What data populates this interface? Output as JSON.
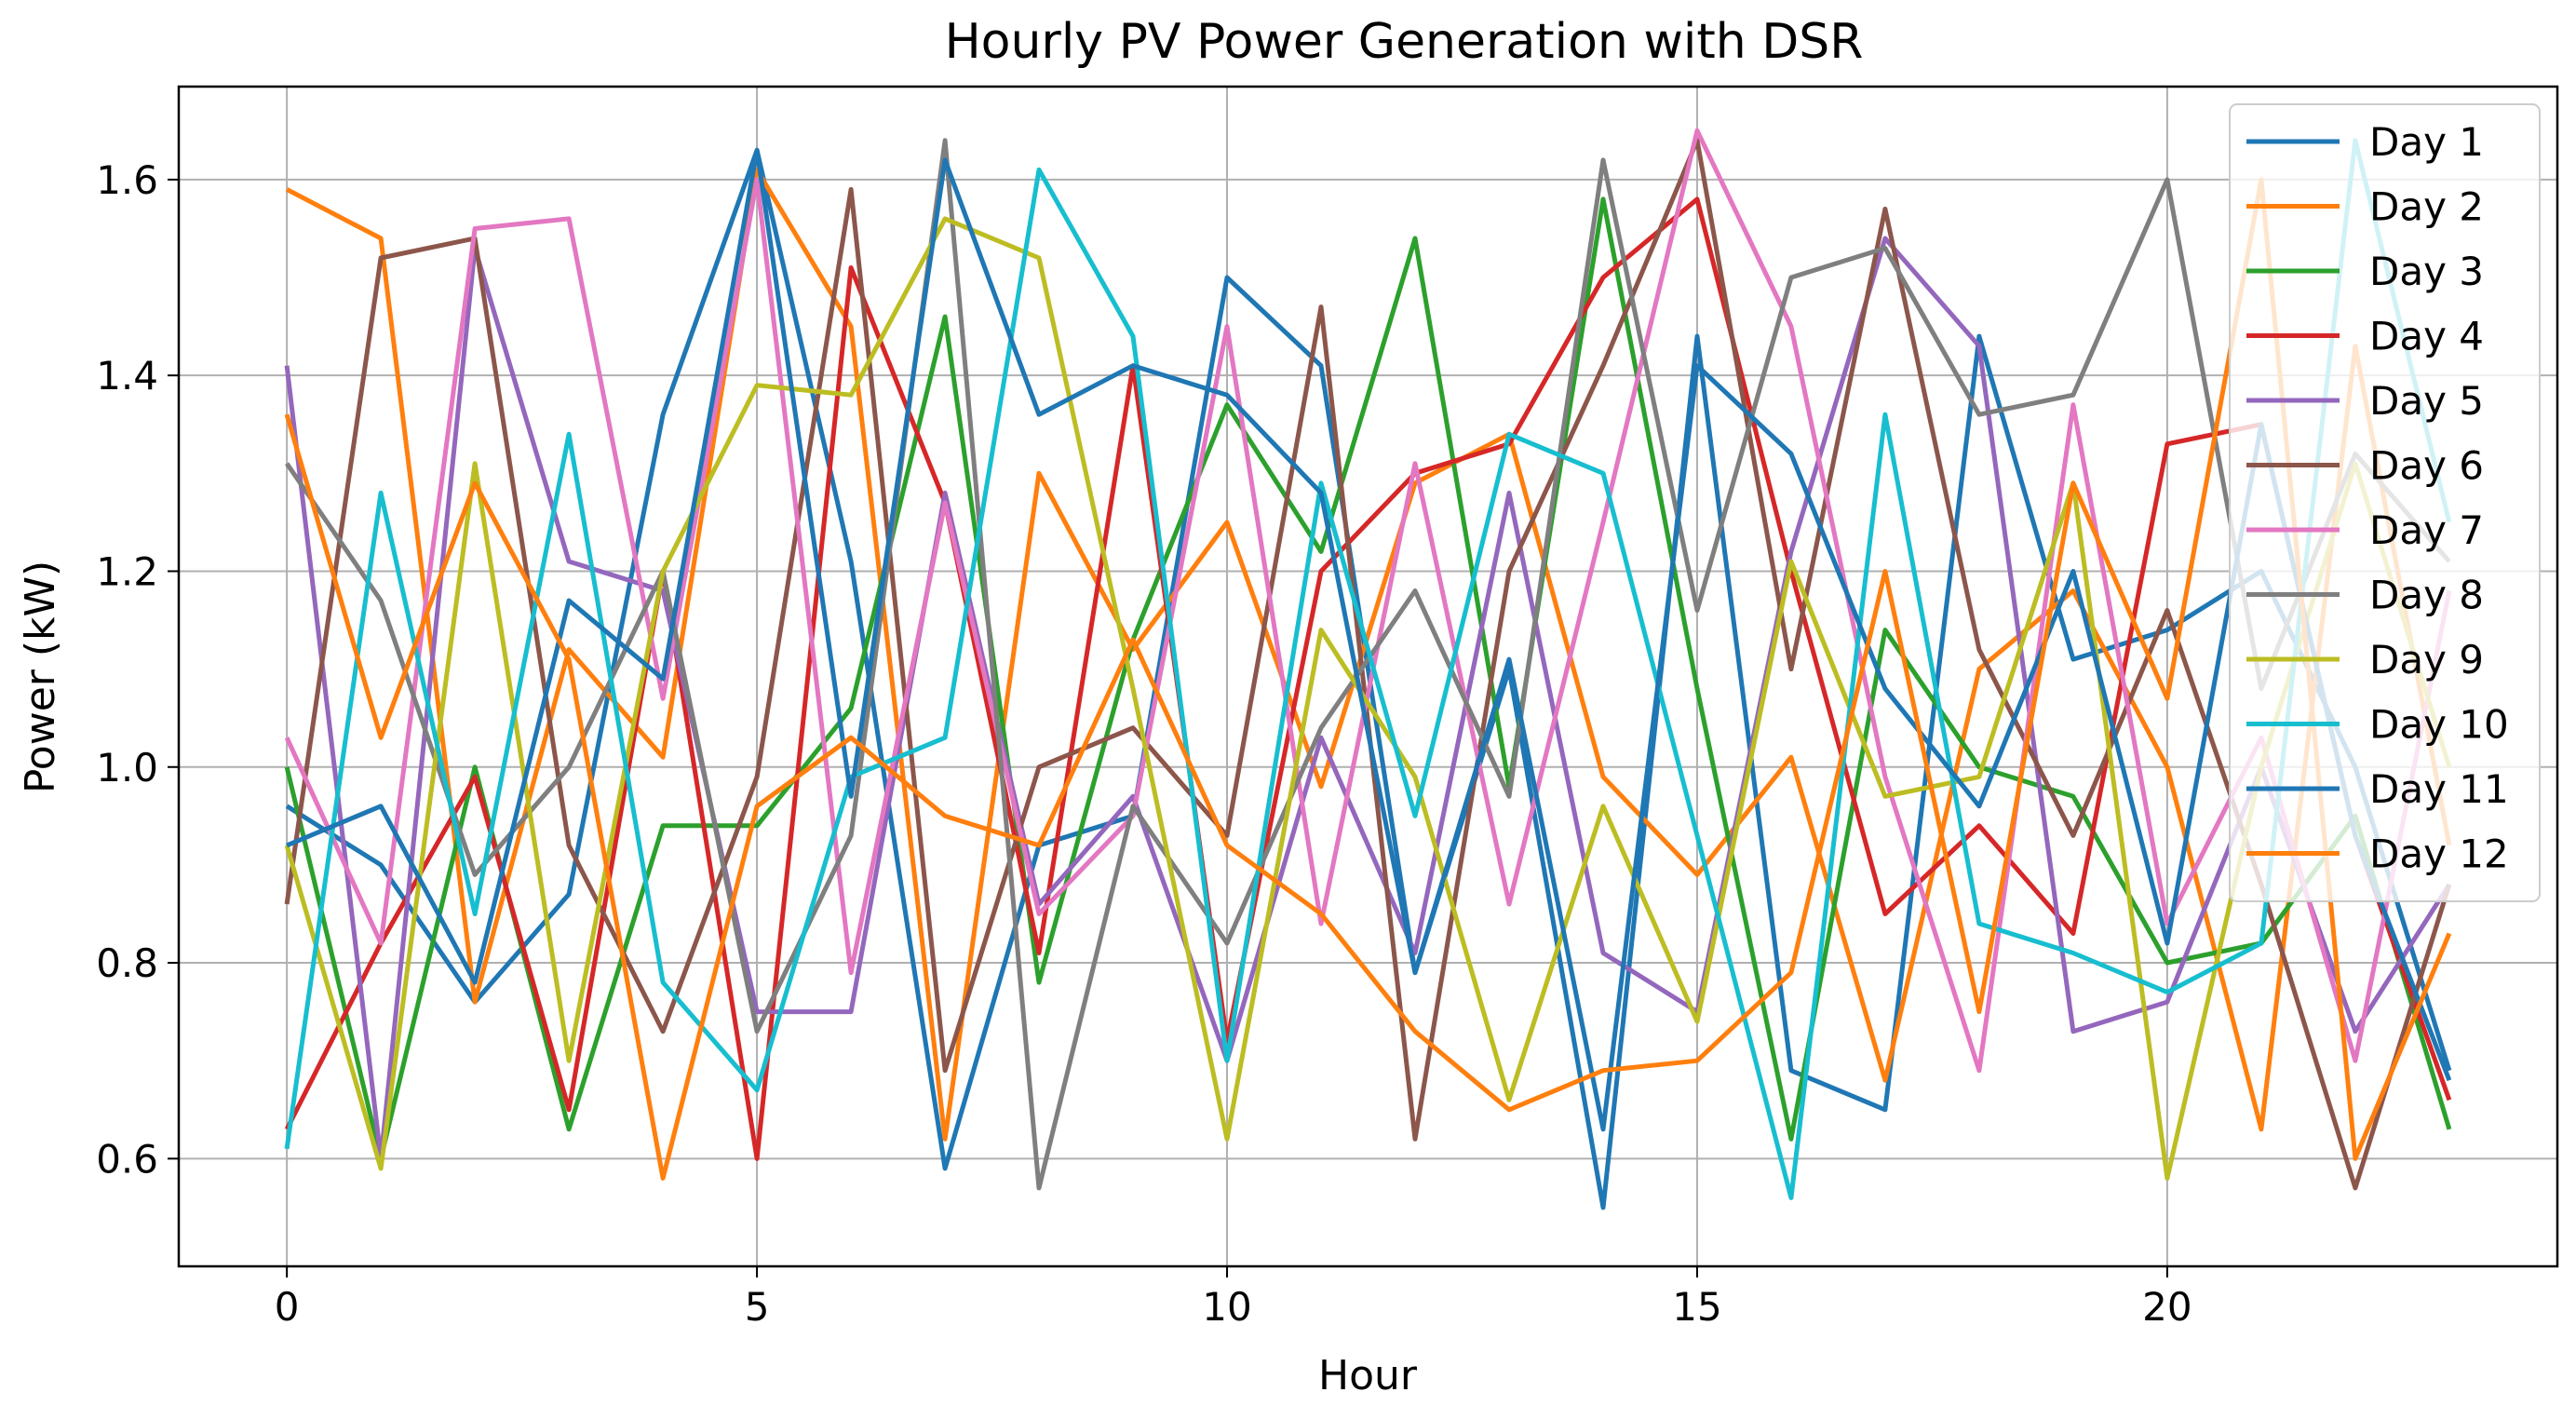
{
  "chart_data": {
    "type": "line",
    "title": "Hourly PV Power Generation with DSR",
    "xlabel": "Hour",
    "ylabel": "Power (kW)",
    "xlim": [
      -1.15,
      24.15
    ],
    "ylim": [
      0.49,
      1.695
    ],
    "xticks": [
      0,
      5,
      10,
      15,
      20
    ],
    "yticks": [
      0.6,
      0.8,
      1.0,
      1.2,
      1.4,
      1.6
    ],
    "ytick_labels": [
      "0.6",
      "0.8",
      "1.0",
      "1.2",
      "1.4",
      "1.6"
    ],
    "grid": true,
    "legend_position": "top-right",
    "x": [
      0,
      1,
      2,
      3,
      4,
      5,
      6,
      7,
      8,
      9,
      10,
      11,
      12,
      13,
      14,
      15,
      16,
      17,
      18,
      19,
      20,
      21,
      22,
      23
    ],
    "series": [
      {
        "name": "Day 1",
        "color": "#1f77b4",
        "values": [
          0.96,
          0.9,
          0.76,
          0.87,
          1.36,
          1.63,
          1.21,
          0.59,
          0.92,
          0.95,
          1.5,
          1.41,
          0.79,
          1.1,
          0.55,
          1.44,
          0.69,
          0.65,
          1.44,
          1.11,
          1.14,
          1.2,
          1.0,
          0.69
        ]
      },
      {
        "name": "Day 2",
        "color": "#ff7f0e",
        "values": [
          1.59,
          1.54,
          0.76,
          1.12,
          1.01,
          1.61,
          1.45,
          0.62,
          1.3,
          1.12,
          1.25,
          0.98,
          1.29,
          1.34,
          0.99,
          0.89,
          1.01,
          0.68,
          1.1,
          1.18,
          1.0,
          0.63,
          1.43,
          0.92
        ]
      },
      {
        "name": "Day 3",
        "color": "#2ca02c",
        "values": [
          1.0,
          0.6,
          1.0,
          0.63,
          0.94,
          0.94,
          1.06,
          1.46,
          0.78,
          1.13,
          1.37,
          1.22,
          1.54,
          0.98,
          1.58,
          1.08,
          0.62,
          1.14,
          1.0,
          0.97,
          0.8,
          0.82,
          0.95,
          0.63
        ]
      },
      {
        "name": "Day 4",
        "color": "#d62728",
        "values": [
          0.63,
          0.82,
          0.99,
          0.65,
          1.2,
          0.6,
          1.51,
          1.27,
          0.81,
          1.41,
          0.72,
          1.2,
          1.3,
          1.33,
          1.5,
          1.58,
          1.2,
          0.85,
          0.94,
          0.83,
          1.33,
          1.35,
          0.93,
          0.66
        ]
      },
      {
        "name": "Day 5",
        "color": "#9467bd",
        "values": [
          1.41,
          0.6,
          1.53,
          1.21,
          1.18,
          0.75,
          0.75,
          1.28,
          0.86,
          0.97,
          0.7,
          1.03,
          0.81,
          1.28,
          0.81,
          0.75,
          1.22,
          1.54,
          1.43,
          0.73,
          0.76,
          1.0,
          0.73,
          0.88
        ]
      },
      {
        "name": "Day 6",
        "color": "#8c564b",
        "values": [
          0.86,
          1.52,
          1.54,
          0.92,
          0.73,
          0.99,
          1.59,
          0.69,
          1.0,
          1.04,
          0.93,
          1.47,
          0.62,
          1.2,
          1.41,
          1.64,
          1.1,
          1.57,
          1.12,
          0.93,
          1.16,
          0.88,
          0.57,
          0.88
        ]
      },
      {
        "name": "Day 7",
        "color": "#e377c2",
        "values": [
          1.03,
          0.82,
          1.55,
          1.56,
          1.07,
          1.6,
          0.79,
          1.27,
          0.85,
          0.95,
          1.45,
          0.84,
          1.31,
          0.86,
          1.25,
          1.65,
          1.45,
          0.99,
          0.69,
          1.37,
          0.84,
          1.03,
          0.7,
          1.18
        ]
      },
      {
        "name": "Day 8",
        "color": "#7f7f7f",
        "values": [
          1.31,
          1.17,
          0.89,
          1.0,
          1.2,
          0.73,
          0.93,
          1.64,
          0.57,
          0.96,
          0.82,
          1.04,
          1.18,
          0.97,
          1.62,
          1.16,
          1.5,
          1.53,
          1.36,
          1.38,
          1.6,
          1.08,
          1.32,
          1.21
        ]
      },
      {
        "name": "Day 9",
        "color": "#bcbd22",
        "values": [
          0.92,
          0.59,
          1.31,
          0.7,
          1.2,
          1.39,
          1.38,
          1.56,
          1.52,
          1.08,
          0.62,
          1.14,
          0.99,
          0.66,
          0.96,
          0.74,
          1.21,
          0.97,
          0.99,
          1.29,
          0.58,
          1.0,
          1.31,
          1.0
        ]
      },
      {
        "name": "Day 10",
        "color": "#17becf",
        "values": [
          0.61,
          1.28,
          0.85,
          1.34,
          0.78,
          0.67,
          0.99,
          1.03,
          1.61,
          1.44,
          0.7,
          1.29,
          0.95,
          1.34,
          1.3,
          0.93,
          0.56,
          1.36,
          0.84,
          0.81,
          0.77,
          0.82,
          1.64,
          1.25
        ]
      },
      {
        "name": "Day 11",
        "color": "#1f77b4",
        "values": [
          0.92,
          0.96,
          0.78,
          1.17,
          1.09,
          1.63,
          0.97,
          1.62,
          1.36,
          1.41,
          1.38,
          1.28,
          0.79,
          1.11,
          0.63,
          1.41,
          1.32,
          1.08,
          0.96,
          1.2,
          0.82,
          1.35,
          0.93,
          0.68
        ]
      },
      {
        "name": "Day 12",
        "color": "#ff7f0e",
        "values": [
          1.36,
          1.03,
          1.29,
          1.11,
          0.58,
          0.96,
          1.03,
          0.95,
          0.92,
          1.13,
          0.92,
          0.85,
          0.73,
          0.65,
          0.69,
          0.7,
          0.79,
          1.2,
          0.75,
          1.29,
          1.07,
          1.6,
          0.6,
          0.83
        ]
      }
    ]
  }
}
